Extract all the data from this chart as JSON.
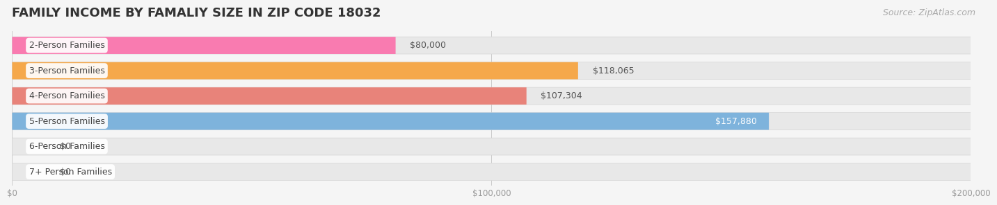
{
  "title": "FAMILY INCOME BY FAMALIY SIZE IN ZIP CODE 18032",
  "source": "Source: ZipAtlas.com",
  "categories": [
    "2-Person Families",
    "3-Person Families",
    "4-Person Families",
    "5-Person Families",
    "6-Person Families",
    "7+ Person Families"
  ],
  "values": [
    80000,
    118065,
    107304,
    157880,
    0,
    0
  ],
  "bar_colors": [
    "#F97BB0",
    "#F5A84B",
    "#E8837A",
    "#7EB3DC",
    "#C4A0D4",
    "#6DCAB8"
  ],
  "value_labels": [
    "$80,000",
    "$118,065",
    "$107,304",
    "$157,880",
    "$0",
    "$0"
  ],
  "value_label_inside": [
    false,
    false,
    false,
    true,
    false,
    false
  ],
  "xlim": [
    0,
    200000
  ],
  "xticks": [
    0,
    100000,
    200000
  ],
  "xtick_labels": [
    "$0",
    "$100,000",
    "$200,000"
  ],
  "background_color": "#f5f5f5",
  "bar_background": "#e8e8e8",
  "bar_height": 0.68,
  "title_fontsize": 13,
  "source_fontsize": 9,
  "label_fontsize": 9,
  "value_fontsize": 9
}
